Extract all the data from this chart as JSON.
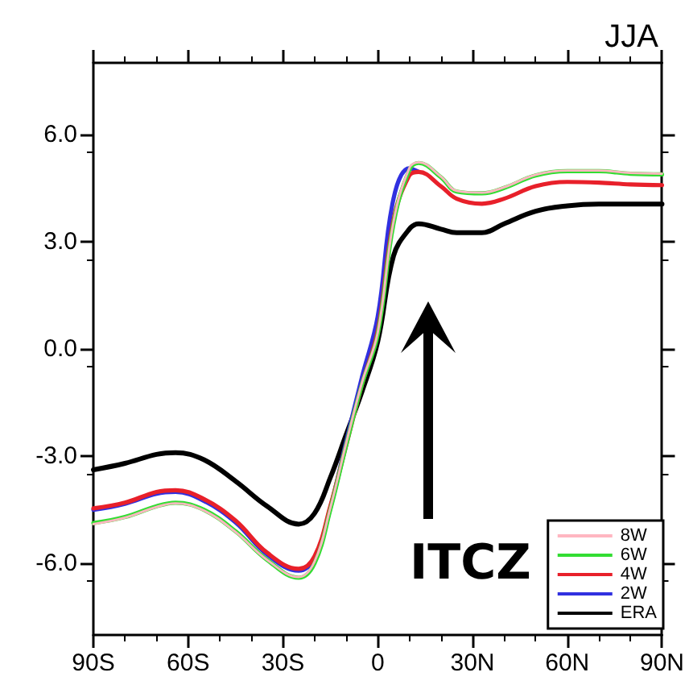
{
  "chart_data": {
    "type": "line",
    "title": "JJA",
    "x": [
      -90,
      -80,
      -70,
      -64,
      -55,
      -45,
      -35,
      -25,
      -20,
      -15,
      -10,
      -5,
      0,
      5,
      10,
      13,
      20,
      25,
      33,
      40,
      50,
      60,
      70,
      80,
      90
    ],
    "series": [
      {
        "name": "8W",
        "color": "#ffb6c1",
        "values": [
          -4.9,
          -4.72,
          -4.42,
          -4.32,
          -4.52,
          -5.12,
          -5.9,
          -6.38,
          -5.95,
          -4.45,
          -2.65,
          -0.95,
          0.45,
          3.55,
          5.05,
          5.22,
          4.82,
          4.42,
          4.37,
          4.52,
          4.87,
          4.99,
          4.99,
          4.92,
          4.9
        ]
      },
      {
        "name": "6W",
        "color": "#33dd33",
        "values": [
          -4.87,
          -4.7,
          -4.4,
          -4.3,
          -4.5,
          -5.1,
          -5.9,
          -6.4,
          -6.0,
          -4.5,
          -2.7,
          -1.0,
          0.4,
          3.5,
          5.0,
          5.2,
          4.8,
          4.4,
          4.35,
          4.5,
          4.85,
          4.97,
          4.97,
          4.9,
          4.88
        ]
      },
      {
        "name": "4W",
        "color": "#e8202a",
        "values": [
          -4.46,
          -4.3,
          -4.0,
          -3.95,
          -4.2,
          -4.8,
          -5.7,
          -6.15,
          -5.8,
          -4.4,
          -2.7,
          -1.0,
          0.5,
          3.6,
          4.85,
          4.95,
          4.55,
          4.2,
          4.06,
          4.2,
          4.55,
          4.67,
          4.65,
          4.6,
          4.58
        ]
      },
      {
        "name": "2W",
        "color": "#3030e0",
        "values": [
          -4.5,
          -4.33,
          -4.05,
          -4.0,
          -4.25,
          -4.85,
          -5.75,
          -6.2,
          -5.85,
          -4.45,
          -2.6,
          -0.8,
          0.9,
          4.2,
          5.05,
          4.95,
          null,
          null,
          null,
          null,
          null,
          null,
          null,
          null,
          null
        ]
      },
      {
        "name": "ERA",
        "color": "#000000",
        "values": [
          -3.38,
          -3.2,
          -2.95,
          -2.9,
          -3.1,
          -3.7,
          -4.4,
          -4.9,
          -4.6,
          -3.6,
          -2.4,
          -1.2,
          0.2,
          2.6,
          3.35,
          3.5,
          3.35,
          3.25,
          3.25,
          3.5,
          3.85,
          4.0,
          4.05,
          4.05,
          4.05
        ]
      }
    ],
    "xlim": [
      -90,
      90
    ],
    "xticks": [
      {
        "value": -90,
        "label": "90S"
      },
      {
        "value": -60,
        "label": "60S"
      },
      {
        "value": -30,
        "label": "30S"
      },
      0,
      {
        "value": 30,
        "label": "30N"
      },
      {
        "value": 60,
        "label": "60N"
      },
      {
        "value": 90,
        "label": "90N"
      }
    ],
    "ylim": [
      -8,
      8
    ],
    "yticks": [
      {
        "value": -6,
        "label": "-6.0"
      },
      {
        "value": -3,
        "label": "-3.0"
      },
      {
        "value": 0,
        "label": "0.0"
      },
      {
        "value": 3,
        "label": "3.0"
      },
      {
        "value": 6,
        "label": "6.0"
      }
    ],
    "annotations": [
      "ITCZ"
    ],
    "grid": false,
    "legend": "bottom right",
    "marker": "none",
    "line_style": "solid"
  }
}
